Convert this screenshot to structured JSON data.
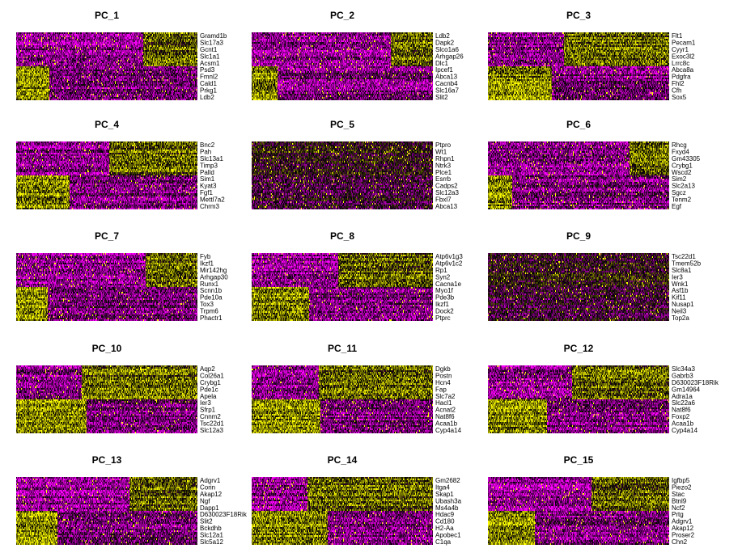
{
  "figure": {
    "colors": {
      "low": "#FF00FF",
      "mid": "#000000",
      "high": "#FFFF00"
    }
  },
  "chart_data": [
    {
      "type": "heatmap",
      "title": "PC_1",
      "genes": [
        "Gramd1b",
        "Slc17a3",
        "Gcnt1",
        "Slc1a1",
        "Acsm1",
        "Psd3",
        "Fmnl2",
        "Cald1",
        "Prkg1",
        "Ldb2"
      ]
    },
    {
      "type": "heatmap",
      "title": "PC_2",
      "genes": [
        "Ldb2",
        "Dapk2",
        "Slco1a6",
        "Arhgap26",
        "Dlc1",
        "Ipcef1",
        "Abca13",
        "Cacnb4",
        "Slc16a7",
        "Slit2"
      ]
    },
    {
      "type": "heatmap",
      "title": "PC_3",
      "genes": [
        "Flt1",
        "Pecam1",
        "Cyyr1",
        "Exoc3l2",
        "Lrrc8c",
        "Abca8a",
        "Pdgfra",
        "Fhl2",
        "Cfh",
        "Sox5"
      ]
    },
    {
      "type": "heatmap",
      "title": "PC_4",
      "genes": [
        "Bnc2",
        "Pah",
        "Slc13a1",
        "Timp3",
        "Palld",
        "Sim1",
        "Kyat3",
        "Fgf1",
        "Mettl7a2",
        "Chrm3"
      ]
    },
    {
      "type": "heatmap",
      "title": "PC_5",
      "genes": [
        "Ptpro",
        "Wt1",
        "Rhpn1",
        "Ntrk3",
        "Plce1",
        "Esrrb",
        "Cadps2",
        "Slc12a3",
        "Fbxl7",
        "Abca13"
      ]
    },
    {
      "type": "heatmap",
      "title": "PC_6",
      "genes": [
        "Rhcg",
        "Fxyd4",
        "Gm43305",
        "Crybg1",
        "Wscd2",
        "Sim2",
        "Slc2a13",
        "Sgcz",
        "Tenm2",
        "Egf"
      ]
    },
    {
      "type": "heatmap",
      "title": "PC_7",
      "genes": [
        "Fyb",
        "Ikzf1",
        "Mir142hg",
        "Arhgap30",
        "Runx1",
        "Scnn1b",
        "Pde10a",
        "Tox3",
        "Trpm6",
        "Phactr1"
      ]
    },
    {
      "type": "heatmap",
      "title": "PC_8",
      "genes": [
        "Atp6v1g3",
        "Atp6v1c2",
        "Rp1",
        "Syn2",
        "Cacna1e",
        "Myo1f",
        "Pde3b",
        "Ikzf1",
        "Dock2",
        "Ptprc"
      ]
    },
    {
      "type": "heatmap",
      "title": "PC_9",
      "genes": [
        "Tsc22d1",
        "Tmem52b",
        "Slc8a1",
        "Ier3",
        "Wnk1",
        "Asf1b",
        "Kif11",
        "Nusap1",
        "Neil3",
        "Top2a"
      ]
    },
    {
      "type": "heatmap",
      "title": "PC_10",
      "genes": [
        "Aqp2",
        "Col26a1",
        "Crybg1",
        "Pde1c",
        "Apela",
        "Ier3",
        "Sfrp1",
        "Cnnm2",
        "Tsc22d1",
        "Slc12a3"
      ]
    },
    {
      "type": "heatmap",
      "title": "PC_11",
      "genes": [
        "Dgkb",
        "Postn",
        "Hcn4",
        "Fap",
        "Slc7a2",
        "Hacl1",
        "Acnat2",
        "Nat8f6",
        "Acaa1b",
        "Cyp4a14"
      ]
    },
    {
      "type": "heatmap",
      "title": "PC_12",
      "genes": [
        "Slc34a3",
        "Gabrb3",
        "D630023F18Rik",
        "Gm14964",
        "Adra1a",
        "Slc22a6",
        "Nat8f6",
        "Foxp2",
        "Acaa1b",
        "Cyp4a14"
      ]
    },
    {
      "type": "heatmap",
      "title": "PC_13",
      "genes": [
        "Adgrv1",
        "Corin",
        "Akap12",
        "Ngf",
        "Dapp1",
        "D630023F18Rik",
        "Slit2",
        "Bckdhb",
        "Slc12a1",
        "Slc5a12"
      ]
    },
    {
      "type": "heatmap",
      "title": "PC_14",
      "genes": [
        "Gm2682",
        "Itga4",
        "Skap1",
        "Ubash3a",
        "Ms4a4b",
        "Hdac9",
        "Cd180",
        "H2-Aa",
        "Apobec1",
        "C1qa"
      ]
    },
    {
      "type": "heatmap",
      "title": "PC_15",
      "genes": [
        "Igfbp5",
        "Piezo2",
        "Stac",
        "Btnl9",
        "Ncf2",
        "Prtg",
        "Adgrv1",
        "Akap12",
        "Proser2",
        "Chn2"
      ]
    }
  ]
}
